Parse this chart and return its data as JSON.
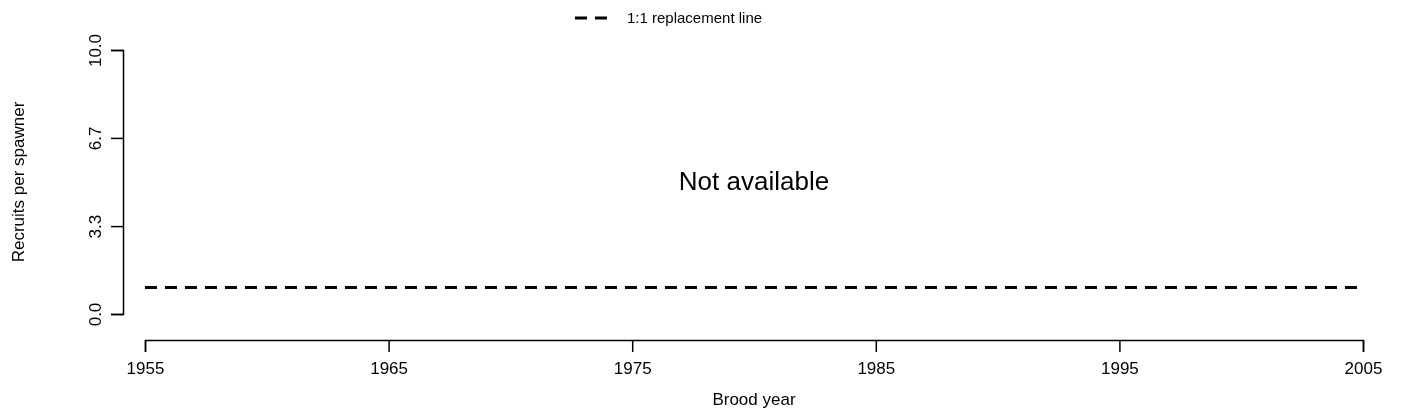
{
  "chart_data": {
    "type": "line",
    "xlabel": "Brood year",
    "ylabel": "Recruits per spawner",
    "xlim": [
      1955,
      2005
    ],
    "xticks": [
      1955,
      1965,
      1975,
      1985,
      1995,
      2005
    ],
    "ylim": [
      0,
      10
    ],
    "yticks": [
      {
        "value": 0,
        "label": "0.0"
      },
      {
        "value": 3.33,
        "label": "3.3"
      },
      {
        "value": 6.67,
        "label": "6.7"
      },
      {
        "value": 10,
        "label": "10.0"
      }
    ],
    "ref_lines": [
      {
        "axis": "y",
        "value": 1,
        "label": "1:1 replacement line",
        "color": "#000000",
        "line_style": "dashed"
      }
    ],
    "annotations": [
      "Not available"
    ],
    "legend": "top",
    "grid": false
  }
}
